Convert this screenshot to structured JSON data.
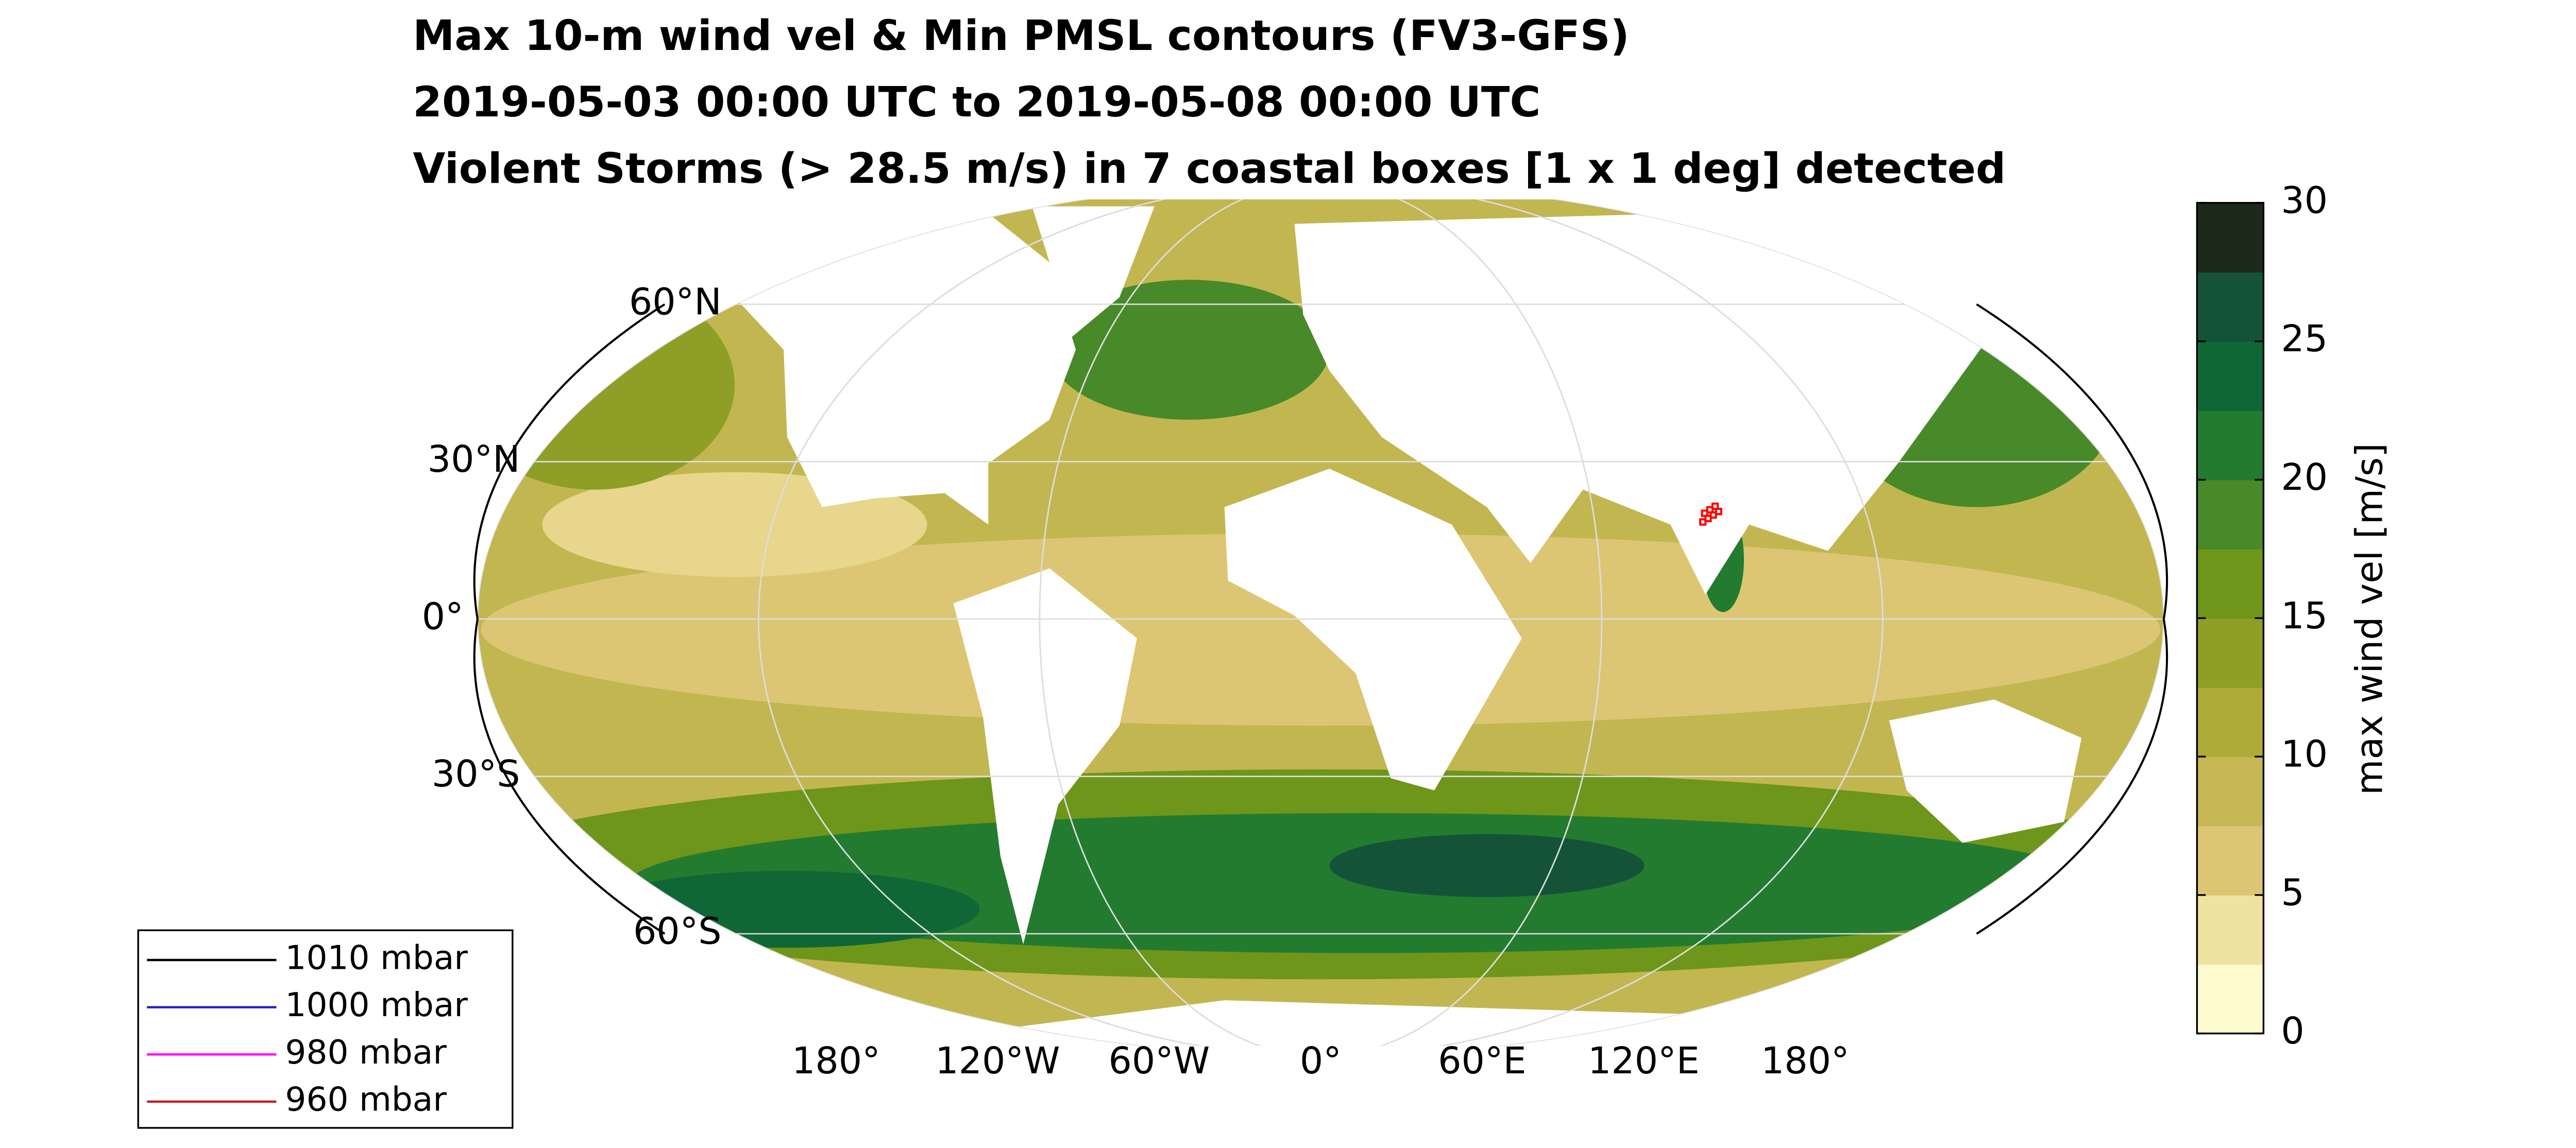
{
  "chart_data": {
    "type": "map",
    "title_lines": [
      "Max 10-m wind vel & Min PMSL contours (FV3-GFS)",
      "2019-05-03 00:00 UTC to 2019-05-08 00:00 UTC",
      "Violent Storms (> 28.5 m/s) in 7 coastal boxes [1 x 1 deg] detected"
    ],
    "lat_ticks": [
      {
        "value": 60,
        "label": "60°N"
      },
      {
        "value": 30,
        "label": "30°N"
      },
      {
        "value": 0,
        "label": "0°"
      },
      {
        "value": -30,
        "label": "30°S"
      },
      {
        "value": -60,
        "label": "60°S"
      }
    ],
    "lon_ticks": [
      {
        "value": -180,
        "label": "180°"
      },
      {
        "value": -120,
        "label": "120°W"
      },
      {
        "value": -60,
        "label": "60°W"
      },
      {
        "value": 0,
        "label": "0°"
      },
      {
        "value": 60,
        "label": "60°E"
      },
      {
        "value": 120,
        "label": "120°E"
      },
      {
        "value": 180,
        "label": "180°"
      }
    ],
    "colorbar": {
      "label": "max wind vel [m/s]",
      "ylim": [
        0,
        30
      ],
      "yticks": [
        0,
        5,
        10,
        15,
        20,
        25,
        30
      ],
      "colors": [
        "#fefbd0",
        "#efe3a2",
        "#dcc673",
        "#c6b755",
        "#aeab3a",
        "#8e9e27",
        "#6e961a",
        "#48892a",
        "#237b2f",
        "#0f6736",
        "#155338",
        "#1b2a1b"
      ]
    },
    "legend": [
      {
        "name": "1010 mbar",
        "color": "#000000"
      },
      {
        "name": "1000 mbar",
        "color": "#1f1fd0"
      },
      {
        "name": "980 mbar",
        "color": "#ff00ff"
      },
      {
        "name": "960 mbar",
        "color": "#c02020"
      }
    ]
  }
}
